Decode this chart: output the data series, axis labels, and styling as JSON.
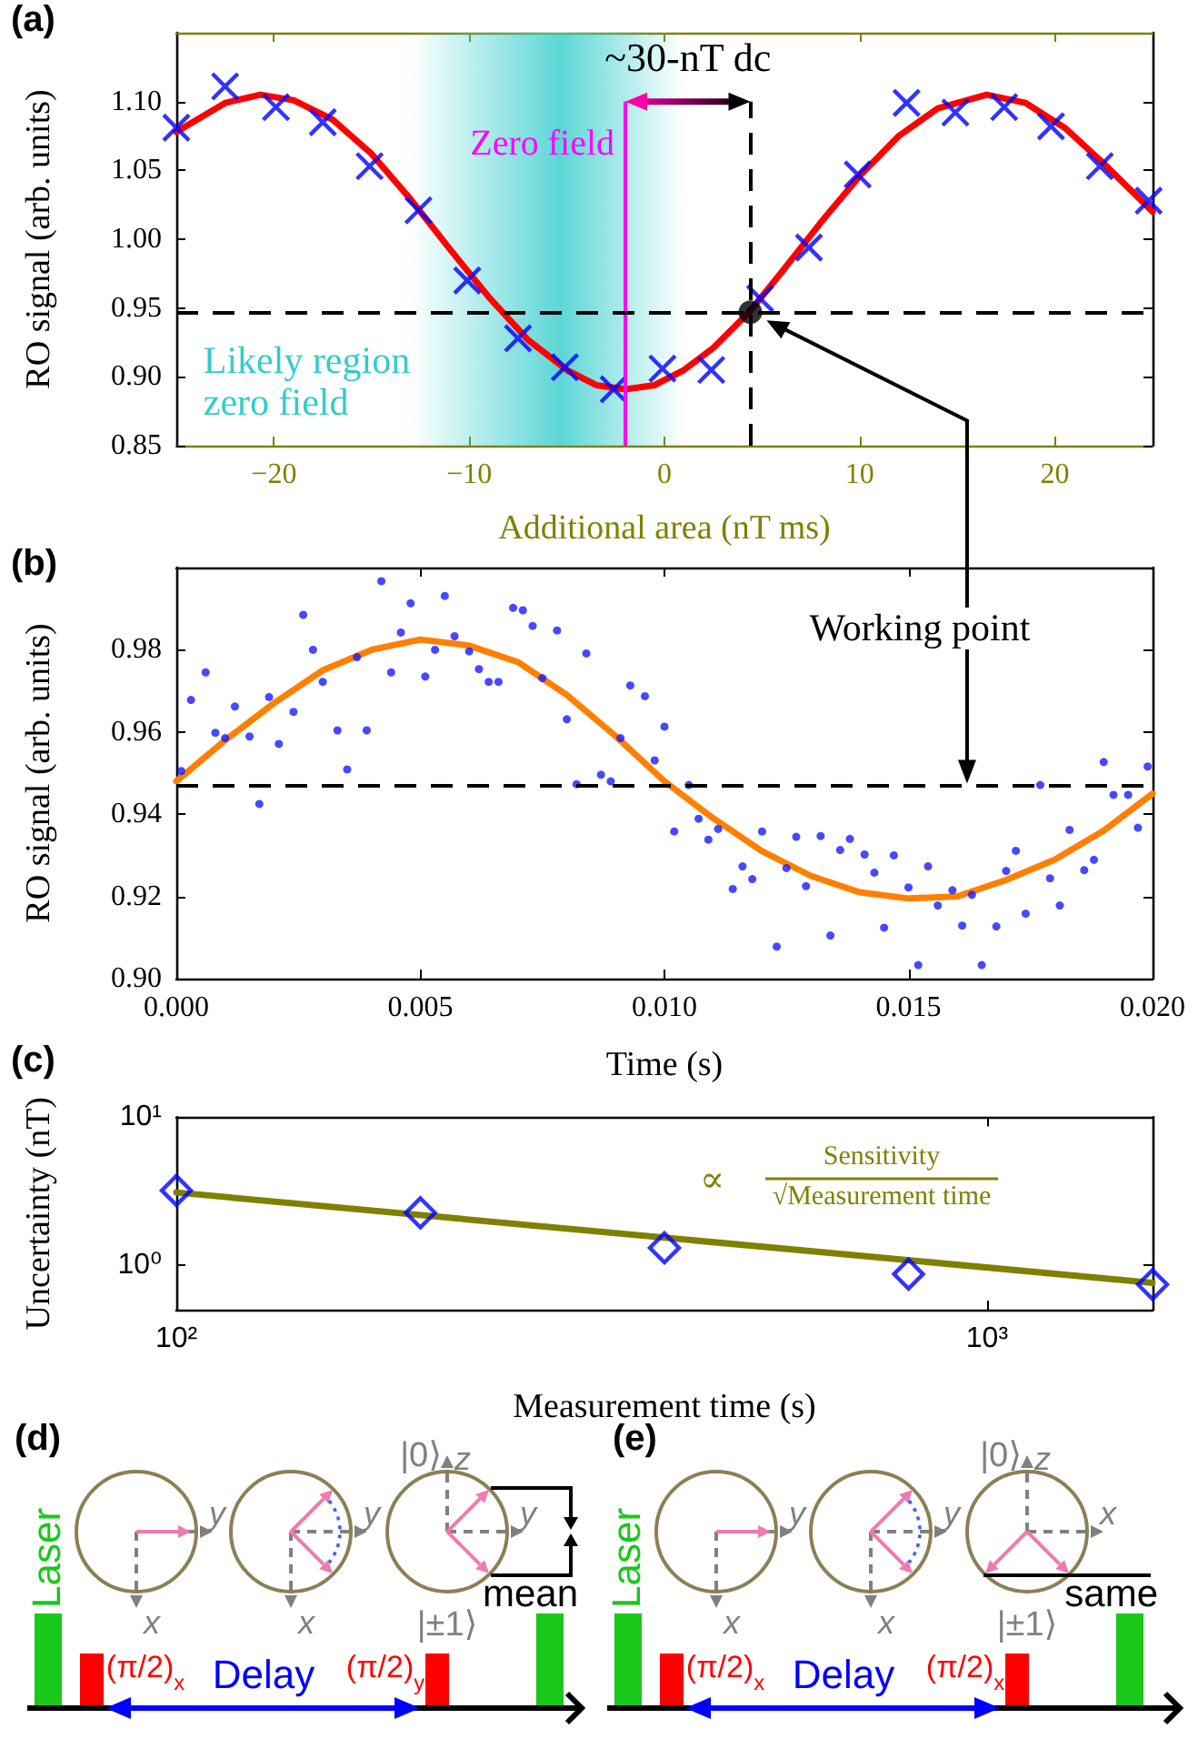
{
  "chart_data": [
    {
      "type": "scatter",
      "xlabel": "Additional area (nT ms)",
      "ylabel": "RO signal (arb. units)",
      "xlim": [
        -25,
        25
      ],
      "xticks": [
        {
          "value": -20,
          "label": "−20"
        },
        {
          "value": -10,
          "label": "−10"
        },
        0,
        10,
        20
      ],
      "ylim": [
        0.85,
        1.15
      ],
      "yticks": [
        0.85,
        {
          "value": 0.9,
          "label": "0.90"
        },
        0.95,
        {
          "value": 1,
          "label": "1.00"
        },
        1.05,
        {
          "value": 1.1,
          "label": "1.10"
        }
      ],
      "annotations": [
        "(a)",
        "~30-nT dc"
      ],
      "ref_lines": [
        {
          "axis": "x",
          "value": -2,
          "label": "Zero field",
          "color": "#ff00ff",
          "line_style": "solid"
        },
        {
          "axis": "x",
          "value": 4.4,
          "line_style": "dashed",
          "color": "#000000"
        },
        {
          "axis": "y",
          "value": 0.947,
          "line_style": "dashed",
          "color": "#000000"
        }
      ],
      "bands": [
        {
          "axis": "x",
          "from": -13,
          "to": 1,
          "label": "Likely region zero field",
          "color": "#33cccc"
        }
      ],
      "series": [
        {
          "type": "scatter",
          "marker": "cross",
          "color": "#0000ff",
          "x": [
            -25,
            -22.5,
            -19.9,
            -17.5,
            -15.1,
            -12.6,
            -10.1,
            -7.5,
            -5.1,
            -2.6,
            -0.1,
            2.4,
            4.9,
            7.4,
            9.9,
            12.4,
            14.9,
            17.4,
            19.8,
            22.3,
            24.8
          ],
          "values": [
            1.081,
            1.111,
            1.096,
            1.085,
            1.053,
            1.021,
            0.97,
            0.928,
            0.907,
            0.891,
            0.906,
            0.905,
            0.957,
            0.994,
            1.047,
            1.099,
            1.092,
            1.096,
            1.082,
            1.053,
            1.028
          ]
        },
        {
          "type": "line",
          "marker": "none",
          "color": "#ff0000",
          "x": [
            -25,
            -22.5,
            -20.7,
            -19,
            -17,
            -15,
            -13,
            -11,
            -9,
            -7,
            -5,
            -3.5,
            -2,
            -0.5,
            1,
            2.5,
            4.4,
            6,
            8,
            10,
            12,
            14,
            16.5,
            18.5,
            20.5,
            22.5,
            25
          ],
          "values": [
            1.078,
            1.099,
            1.105,
            1.101,
            1.087,
            1.062,
            1.029,
            0.993,
            0.958,
            0.927,
            0.905,
            0.894,
            0.891,
            0.894,
            0.905,
            0.921,
            0.948,
            0.976,
            1.012,
            1.046,
            1.075,
            1.095,
            1.105,
            1.099,
            1.081,
            1.055,
            1.02
          ]
        },
        {
          "type": "scatter",
          "marker": "circle",
          "color": "#000000",
          "x": [
            4.4
          ],
          "values": [
            0.947
          ]
        }
      ]
    },
    {
      "type": "scatter",
      "xlabel": "Time (s)",
      "ylabel": "RO signal (arb. units)",
      "xlim": [
        0,
        0.02
      ],
      "xticks": [
        {
          "value": 0,
          "label": "0.000"
        },
        0.005,
        {
          "value": 0.01,
          "label": "0.010"
        },
        0.015,
        {
          "value": 0.02,
          "label": "0.020"
        }
      ],
      "ylim": [
        0.9,
        1.0
      ],
      "yticks": [
        {
          "value": 0.9,
          "label": "0.90"
        },
        0.92,
        0.94,
        0.96,
        0.98
      ],
      "annotations": [
        "(b)",
        "Working point"
      ],
      "ref_lines": [
        {
          "axis": "y",
          "value": 0.947,
          "line_style": "dashed",
          "color": "#000000"
        }
      ],
      "series": [
        {
          "type": "scatter",
          "marker": "circle",
          "color": "#1a1aff",
          "x": [
            0.0001,
            0.0003,
            0.0006,
            0.0008,
            0.001,
            0.0012,
            0.0015,
            0.0017,
            0.0019,
            0.0021,
            0.0024,
            0.0026,
            0.0028,
            0.003,
            0.0033,
            0.0035,
            0.0037,
            0.0039,
            0.0042,
            0.0044,
            0.0046,
            0.0048,
            0.0051,
            0.0053,
            0.0055,
            0.0057,
            0.006,
            0.0062,
            0.0064,
            0.0066,
            0.0069,
            0.0071,
            0.0073,
            0.0075,
            0.0078,
            0.008,
            0.0082,
            0.0084,
            0.0087,
            0.0089,
            0.0091,
            0.0093,
            0.0096,
            0.0098,
            0.01,
            0.0102,
            0.0105,
            0.0107,
            0.0109,
            0.0111,
            0.0114,
            0.0116,
            0.0118,
            0.012,
            0.0123,
            0.0125,
            0.0127,
            0.0129,
            0.0132,
            0.0134,
            0.0136,
            0.0138,
            0.0141,
            0.0143,
            0.0145,
            0.0147,
            0.015,
            0.0152,
            0.0154,
            0.0156,
            0.0159,
            0.0161,
            0.0163,
            0.0165,
            0.0168,
            0.017,
            0.0172,
            0.0174,
            0.0177,
            0.0179,
            0.0181,
            0.0183,
            0.0186,
            0.0188,
            0.019,
            0.0192,
            0.0195,
            0.0197,
            0.0199
          ],
          "values": [
            0.9505,
            0.9678,
            0.9745,
            0.9598,
            0.9585,
            0.9662,
            0.9589,
            0.9425,
            0.9685,
            0.9571,
            0.9649,
            0.9885,
            0.98,
            0.9722,
            0.9604,
            0.9509,
            0.9782,
            0.9604,
            0.9967,
            0.9745,
            0.9842,
            0.9913,
            0.9735,
            0.98,
            0.9931,
            0.9833,
            0.9796,
            0.9753,
            0.9722,
            0.9722,
            0.9902,
            0.9896,
            0.9858,
            0.9731,
            0.9847,
            0.9631,
            0.9473,
            0.9791,
            0.9496,
            0.948,
            0.9585,
            0.9713,
            0.9687,
            0.9531,
            0.9613,
            0.9358,
            0.9471,
            0.9389,
            0.9338,
            0.9364,
            0.9218,
            0.9273,
            0.9242,
            0.9358,
            0.9078,
            0.9269,
            0.9345,
            0.9225,
            0.9347,
            0.9105,
            0.9313,
            0.934,
            0.9302,
            0.9258,
            0.9124,
            0.93,
            0.9222,
            0.9033,
            0.9273,
            0.9178,
            0.9215,
            0.9129,
            0.9204,
            0.9033,
            0.9127,
            0.9262,
            0.9311,
            0.9158,
            0.9471,
            0.9244,
            0.9178,
            0.9362,
            0.9264,
            0.9289,
            0.9527,
            0.9447,
            0.9447,
            0.9367,
            0.9516
          ]
        },
        {
          "type": "line",
          "marker": "none",
          "color": "#ff8000",
          "x": [
            0,
            0.001,
            0.002,
            0.003,
            0.004,
            0.005,
            0.006,
            0.007,
            0.008,
            0.009,
            0.01,
            0.011,
            0.012,
            0.013,
            0.014,
            0.015,
            0.016,
            0.017,
            0.018,
            0.019,
            0.02
          ],
          "values": [
            0.948,
            0.958,
            0.967,
            0.975,
            0.98,
            0.9825,
            0.981,
            0.977,
            0.969,
            0.959,
            0.948,
            0.939,
            0.931,
            0.925,
            0.921,
            0.9195,
            0.92,
            0.924,
            0.929,
            0.936,
            0.945
          ]
        }
      ]
    },
    {
      "type": "scatter",
      "log": "xy",
      "xlabel": "Measurement time (s)",
      "ylabel": "Uncertainty (nT)",
      "xlim": [
        100,
        1600
      ],
      "xticks": [
        {
          "value": 100,
          "label": "10²"
        },
        {
          "value": 1000,
          "label": "10³"
        }
      ],
      "ylim": [
        0.5,
        10
      ],
      "yticks": [
        {
          "value": 1,
          "label": "10⁰"
        },
        {
          "value": 10,
          "label": "10¹"
        }
      ],
      "annotations": [
        "(c)",
        "∝",
        "Sensitivity",
        "√Measurement time"
      ],
      "series": [
        {
          "type": "line",
          "marker": "none",
          "color": "#808000",
          "x": [
            100,
            1600
          ],
          "values": [
            3.1,
            0.76
          ]
        },
        {
          "type": "scatter",
          "marker": "diamond",
          "color": "#0000ff",
          "x": [
            100,
            200,
            400,
            800,
            1600
          ],
          "values": [
            3.2,
            2.26,
            1.31,
            0.87,
            0.74
          ]
        }
      ]
    },
    {
      "type": "other",
      "annotations": [
        "(d)",
        "Laser",
        "(π/2)$_{x}$",
        "Delay",
        "(π/2)$_{y}$",
        "|0⟩",
        "z",
        "|±1⟩",
        "mean",
        "y",
        "x",
        "y",
        "x",
        "y"
      ]
    },
    {
      "type": "other",
      "annotations": [
        "(e)",
        "Laser",
        "(π/2)$_{x}$",
        "Delay",
        "(π/2)$_{x}$",
        "|0⟩",
        "z",
        "|±1⟩",
        "same",
        "y",
        "x",
        "y",
        "x",
        "x"
      ]
    }
  ]
}
